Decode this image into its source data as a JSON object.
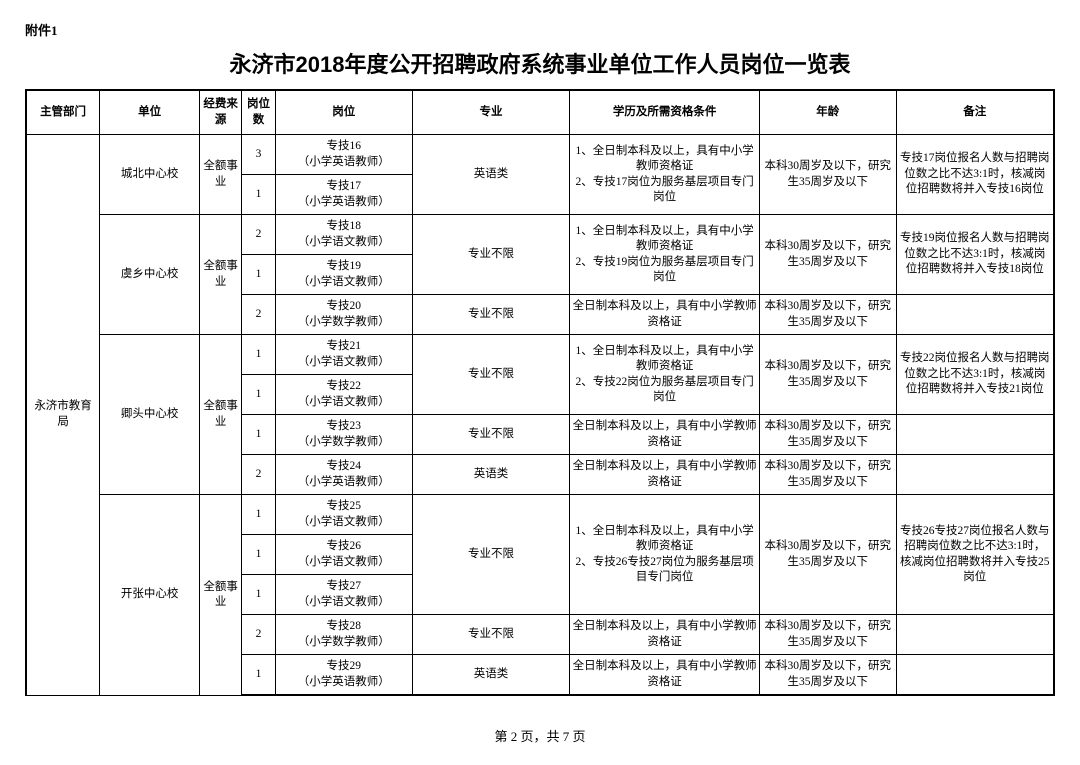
{
  "attachment_label": "附件1",
  "title": "永济市2018年度公开招聘政府系统事业单位工作人员岗位一览表",
  "columns": {
    "dept": "主管部门",
    "unit": "单位",
    "fund": "经费来源",
    "count": "岗位数",
    "post": "岗位",
    "major": "专业",
    "qual": "学历及所需资格条件",
    "age": "年龄",
    "note": "备注"
  },
  "dept": "永济市教育局",
  "units": [
    {
      "name": "城北中心校",
      "fund": "全额事业",
      "rows": [
        {
          "count": "3",
          "post": "专技16\n（小学英语教师）",
          "major": "英语类",
          "major_rs": 2,
          "qual": "1、全日制本科及以上，具有中小学教师资格证\n2、专技17岗位为服务基层项目专门岗位",
          "qual_rs": 2,
          "age": "本科30周岁及以下，研究生35周岁及以下",
          "age_rs": 2,
          "note": "专技17岗位报名人数与招聘岗位数之比不达3:1时，核减岗位招聘数将并入专技16岗位",
          "note_rs": 2
        },
        {
          "count": "1",
          "post": "专技17\n（小学英语教师）"
        }
      ]
    },
    {
      "name": "虞乡中心校",
      "fund": "全额事业",
      "rows": [
        {
          "count": "2",
          "post": "专技18\n（小学语文教师）",
          "major": "专业不限",
          "major_rs": 2,
          "qual": "1、全日制本科及以上，具有中小学教师资格证\n2、专技19岗位为服务基层项目专门岗位",
          "qual_rs": 2,
          "age": "本科30周岁及以下，研究生35周岁及以下",
          "age_rs": 2,
          "note": "专技19岗位报名人数与招聘岗位数之比不达3:1时，核减岗位招聘数将并入专技18岗位",
          "note_rs": 2
        },
        {
          "count": "1",
          "post": "专技19\n（小学语文教师）"
        },
        {
          "count": "2",
          "post": "专技20\n（小学数学教师）",
          "major": "专业不限",
          "qual": "全日制本科及以上，具有中小学教师资格证",
          "age": "本科30周岁及以下，研究生35周岁及以下",
          "note": ""
        }
      ]
    },
    {
      "name": "卿头中心校",
      "fund": "全额事业",
      "rows": [
        {
          "count": "1",
          "post": "专技21\n（小学语文教师）",
          "major": "专业不限",
          "major_rs": 2,
          "qual": "1、全日制本科及以上，具有中小学教师资格证\n2、专技22岗位为服务基层项目专门岗位",
          "qual_rs": 2,
          "age": "本科30周岁及以下，研究生35周岁及以下",
          "age_rs": 2,
          "note": "专技22岗位报名人数与招聘岗位数之比不达3:1时，核减岗位招聘数将并入专技21岗位",
          "note_rs": 2
        },
        {
          "count": "1",
          "post": "专技22\n（小学语文教师）"
        },
        {
          "count": "1",
          "post": "专技23\n（小学数学教师）",
          "major": "专业不限",
          "qual": "全日制本科及以上，具有中小学教师资格证",
          "age": "本科30周岁及以下，研究生35周岁及以下",
          "note": ""
        },
        {
          "count": "2",
          "post": "专技24\n（小学英语教师）",
          "major": "英语类",
          "qual": "全日制本科及以上，具有中小学教师资格证",
          "age": "本科30周岁及以下，研究生35周岁及以下",
          "note": ""
        }
      ]
    },
    {
      "name": "开张中心校",
      "fund": "全额事业",
      "rows": [
        {
          "count": "1",
          "post": "专技25\n（小学语文教师）",
          "major": "专业不限",
          "major_rs": 3,
          "qual": "1、全日制本科及以上，具有中小学教师资格证\n2、专技26专技27岗位为服务基层项目专门岗位",
          "qual_rs": 3,
          "age": "本科30周岁及以下，研究生35周岁及以下",
          "age_rs": 3,
          "note": "专技26专技27岗位报名人数与招聘岗位数之比不达3:1时，核减岗位招聘数将并入专技25岗位",
          "note_rs": 3
        },
        {
          "count": "1",
          "post": "专技26\n（小学语文教师）"
        },
        {
          "count": "1",
          "post": "专技27\n（小学语文教师）"
        },
        {
          "count": "2",
          "post": "专技28\n（小学数学教师）",
          "major": "专业不限",
          "qual": "全日制本科及以上，具有中小学教师资格证",
          "age": "本科30周岁及以下，研究生35周岁及以下",
          "note": ""
        },
        {
          "count": "1",
          "post": "专技29\n（小学英语教师）",
          "major": "英语类",
          "qual": "全日制本科及以上，具有中小学教师资格证",
          "age": "本科30周岁及以下，研究生35周岁及以下",
          "note": ""
        }
      ]
    }
  ],
  "pager": "第 2 页，共 7 页"
}
